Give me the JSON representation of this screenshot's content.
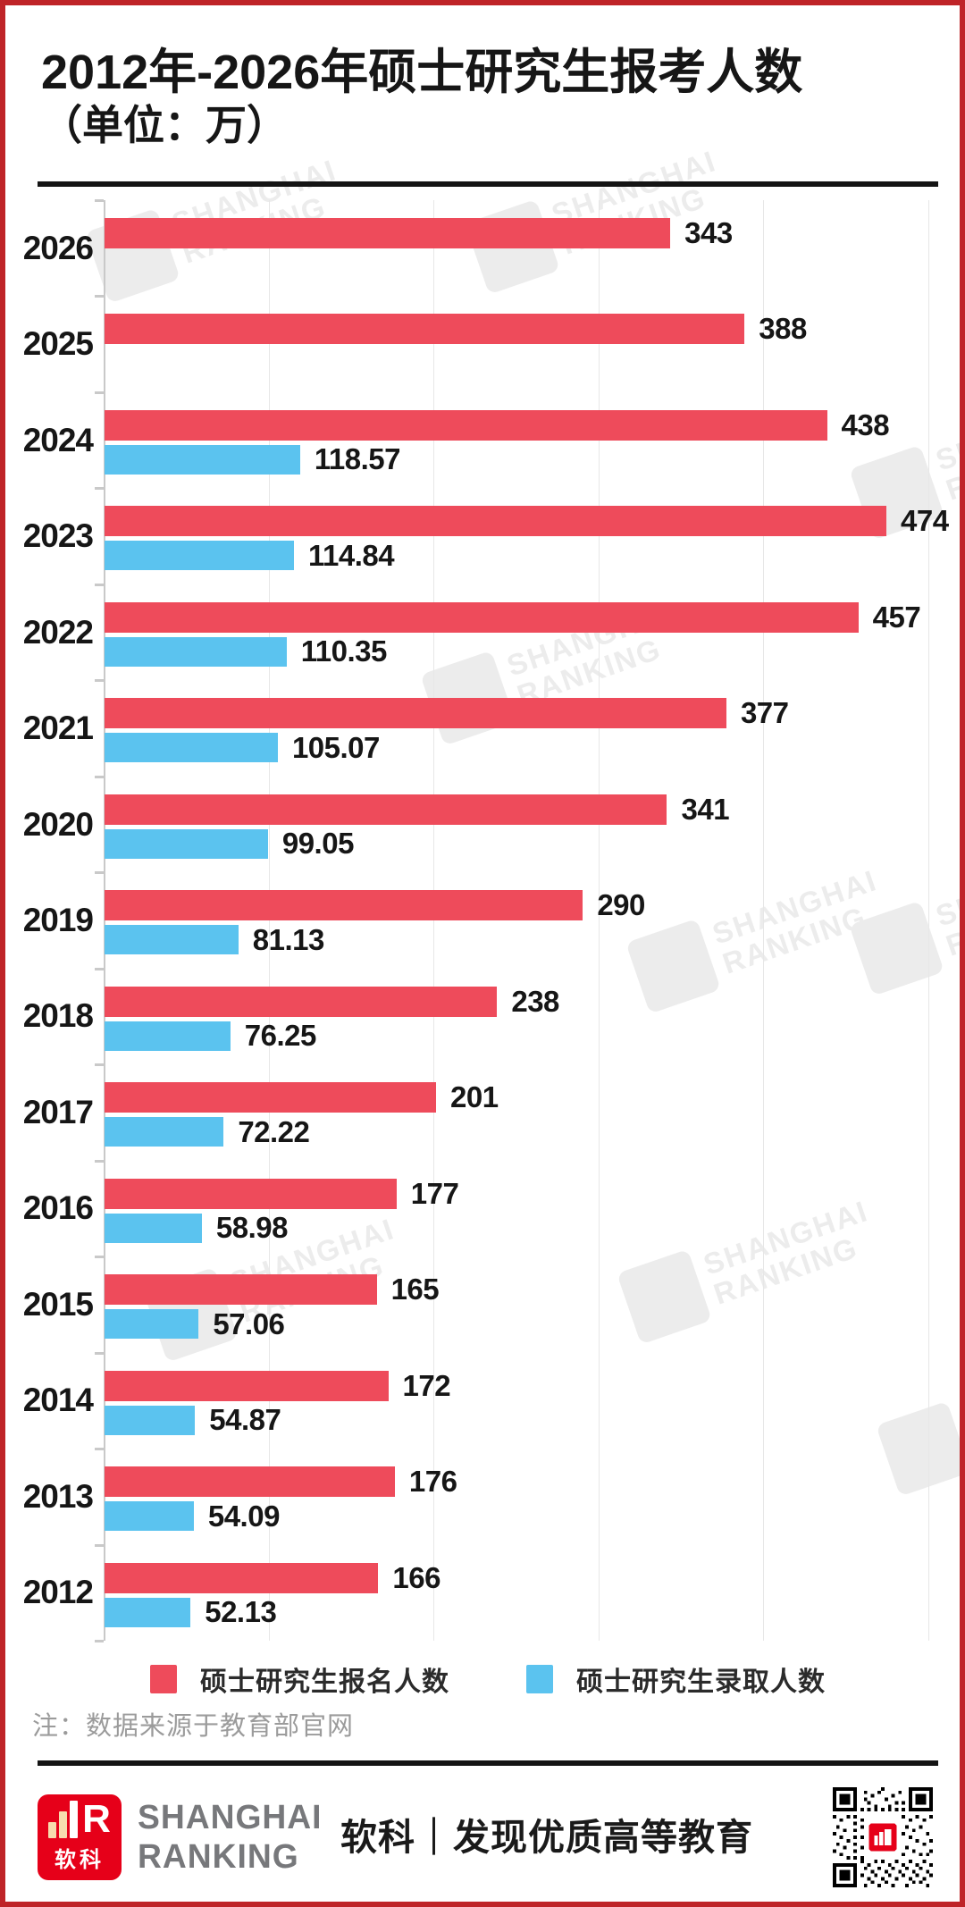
{
  "page": {
    "title_line1": "2012年-2026年硕士研究生报考人数",
    "title_line2": "（单位：万）",
    "note": "注：数据来源于教育部官网"
  },
  "chart_data": {
    "type": "bar",
    "orientation": "horizontal",
    "title": "2012年-2026年硕士研究生报考人数",
    "unit_label": "（单位：万）",
    "categories": [
      "2026",
      "2025",
      "2024",
      "2023",
      "2022",
      "2021",
      "2020",
      "2019",
      "2018",
      "2017",
      "2016",
      "2015",
      "2014",
      "2013",
      "2012"
    ],
    "series": [
      {
        "name": "硕士研究生报名人数",
        "color": "#ee4b5b",
        "values": [
          343,
          388,
          438,
          474,
          457,
          377,
          341,
          290,
          238,
          201,
          177,
          165,
          172,
          176,
          166
        ]
      },
      {
        "name": "硕士研究生录取人数",
        "color": "#5bc3ef",
        "values": [
          null,
          null,
          118.57,
          114.84,
          110.35,
          105.07,
          99.05,
          81.13,
          76.25,
          72.22,
          58.98,
          57.06,
          54.87,
          54.09,
          52.13
        ]
      }
    ],
    "xlim": [
      0,
      500
    ],
    "gridline_interval": 100,
    "grid": true,
    "legend_position": "bottom",
    "value_labels": "end-of-bar"
  },
  "legend": {
    "items": [
      {
        "label": "硕士研究生报名人数",
        "color": "#ee4b5b"
      },
      {
        "label": "硕士研究生录取人数",
        "color": "#5bc3ef"
      }
    ]
  },
  "footer": {
    "logo_text": "软科",
    "brand_line1": "SHANGHAI",
    "brand_line2": "RANKING",
    "slogan": "软科｜发现优质高等教育"
  },
  "watermark": {
    "line1": "SHANGHAI",
    "line2": "RANKING"
  },
  "colors": {
    "red": "#ee4b5b",
    "blue": "#5bc3ef",
    "border": "#bf2428",
    "logo_red": "#e60019",
    "ink": "#161616",
    "grid": "#e7e7e7",
    "axis": "#c9c9c9",
    "note_gray": "#9b9b9b",
    "brand_gray": "#77787b",
    "watermark": "#ececec",
    "legend_ink": "#2b2b2b"
  }
}
